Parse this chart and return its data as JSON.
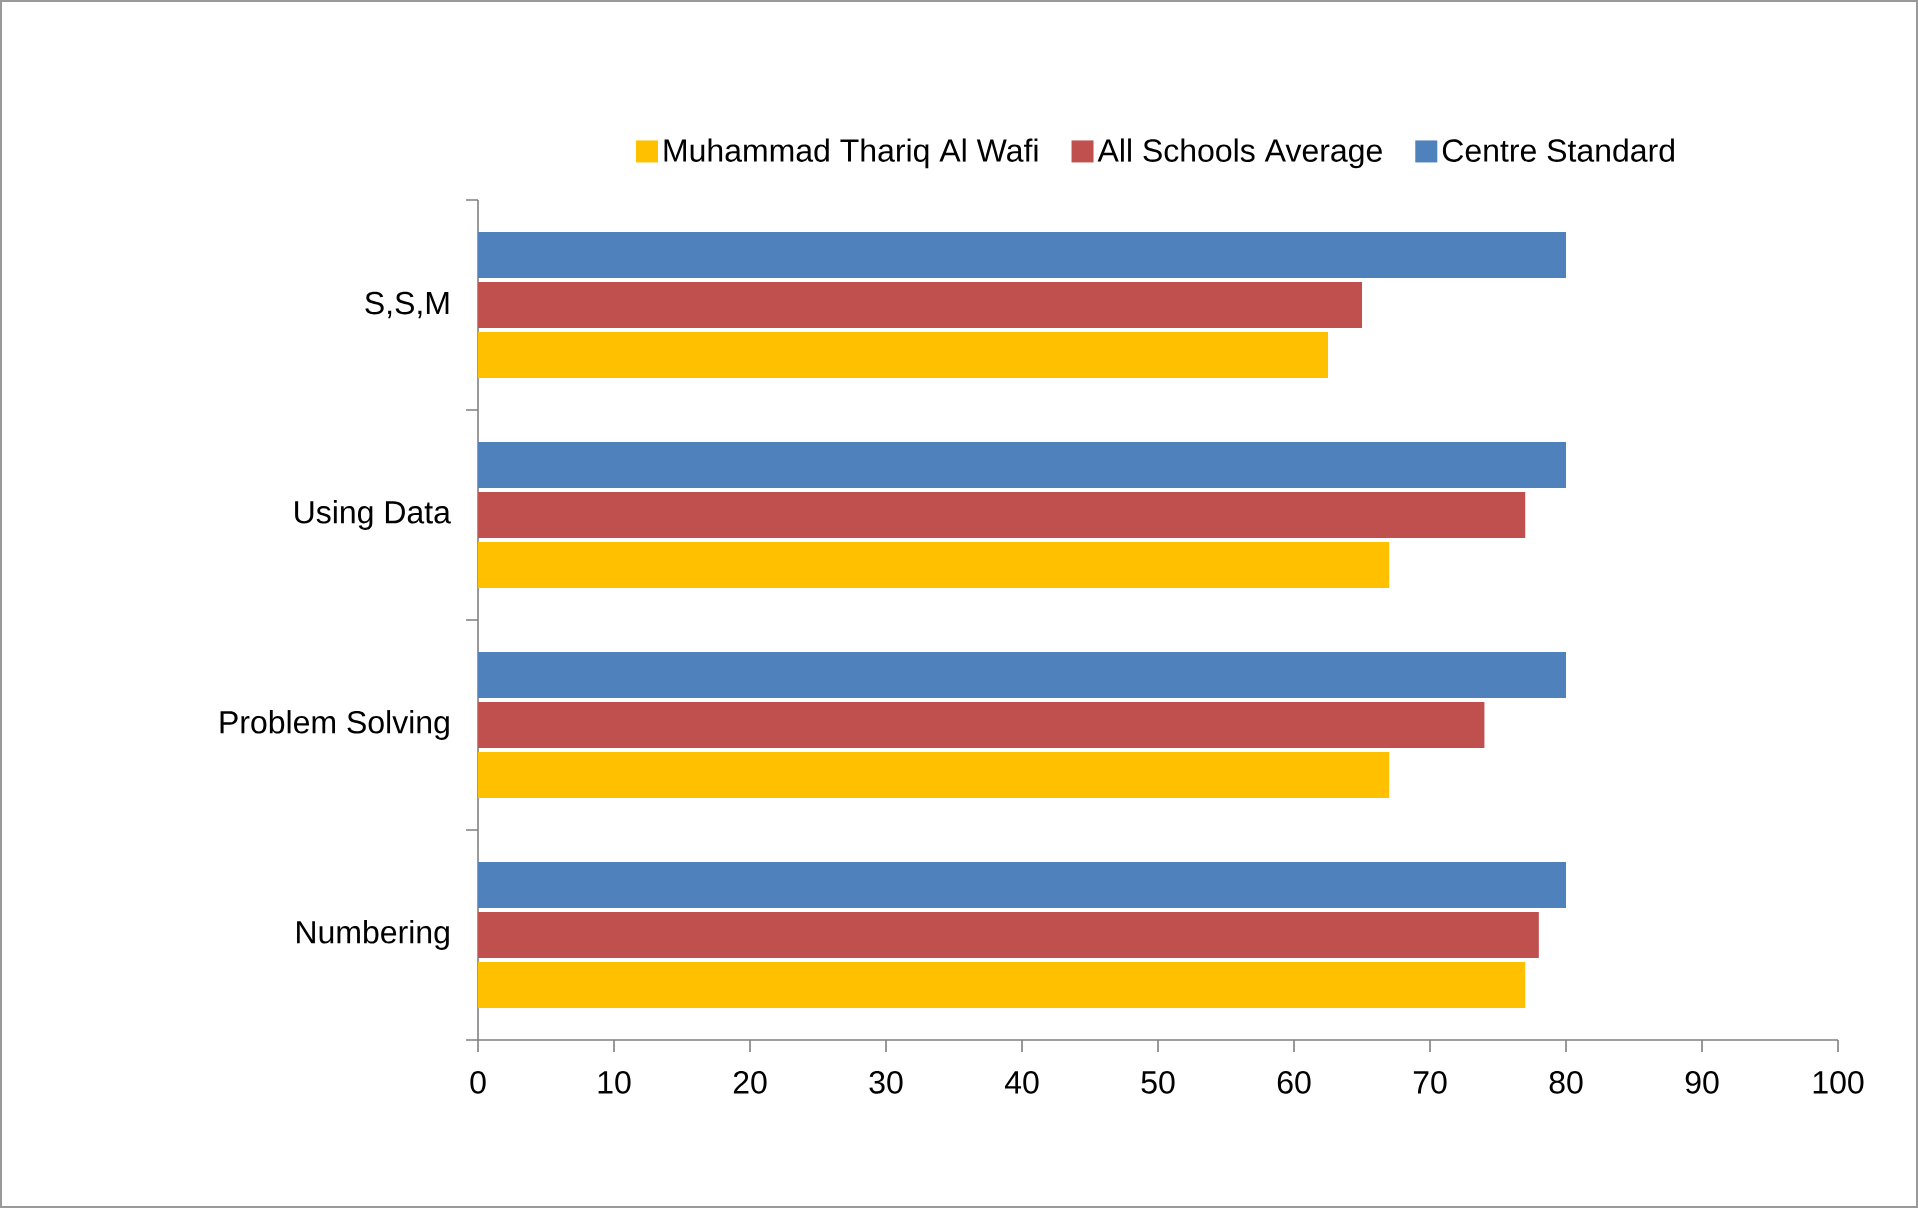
{
  "chart_data": {
    "type": "bar",
    "orientation": "horizontal",
    "categories": [
      "S,S,M",
      "Using Data",
      "Problem Solving",
      "Numbering"
    ],
    "series": [
      {
        "name": "Muhammad Thariq Al Wafi",
        "color": "#ffc000",
        "values": [
          62.5,
          67,
          67,
          77
        ]
      },
      {
        "name": "All Schools Average",
        "color": "#c0504d",
        "values": [
          65,
          77,
          74,
          78
        ]
      },
      {
        "name": "Centre Standard",
        "color": "#4f81bd",
        "values": [
          80,
          80,
          80,
          80
        ]
      }
    ],
    "xlim": [
      0,
      100
    ],
    "xticks": [
      0,
      10,
      20,
      30,
      40,
      50,
      60,
      70,
      80,
      90,
      100
    ],
    "grid": false,
    "legend": "top"
  }
}
